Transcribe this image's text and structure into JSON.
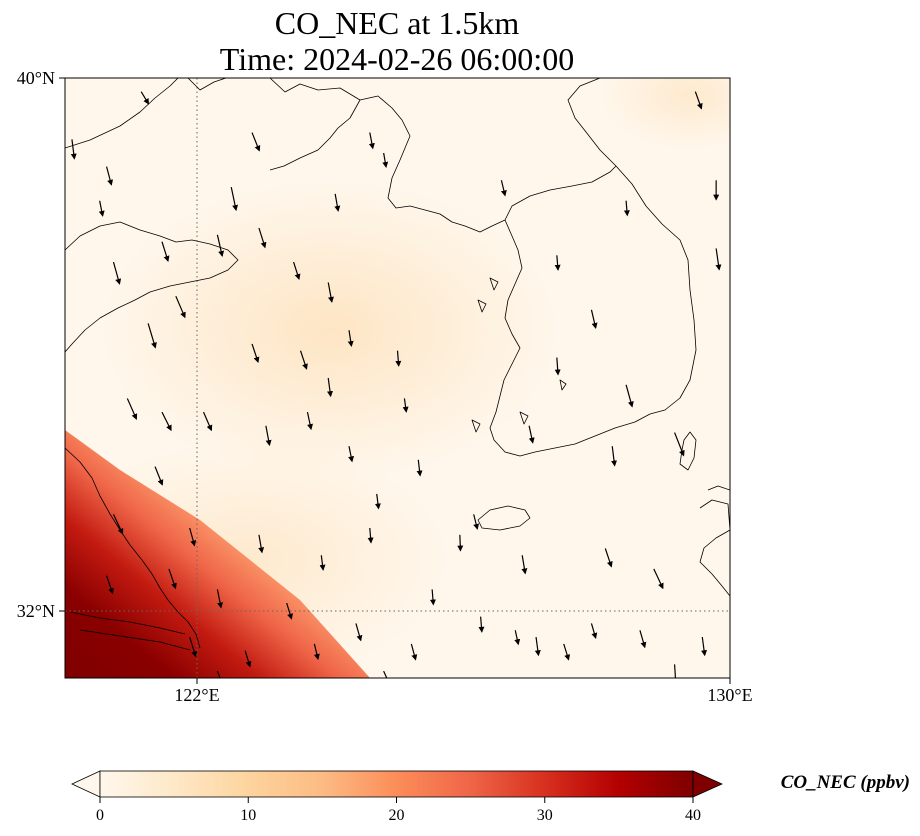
{
  "title": {
    "line1": "CO_NEC at 1.5km",
    "line2": "Time: 2024-02-26 06:00:00"
  },
  "map": {
    "extent": {
      "lon_min": 120.4,
      "lon_max": 130,
      "lat_min": 31.2,
      "lat_max": 40
    },
    "lat_ticks": [
      {
        "value": 40,
        "label": "40°N"
      },
      {
        "value": 32,
        "label": "32°N"
      }
    ],
    "lon_ticks": [
      {
        "value": 122,
        "label": "122°E"
      },
      {
        "value": 130,
        "label": "130°E"
      }
    ],
    "gridlines": "dotted at 122°E and 32°N",
    "land_outline": "coastlines of eastern China, Shandong and Liaodong peninsulas, North Korea, South Korea, Jeju Island, Tsushima and western Japan",
    "field_description": "CO_NEC concentration mostly 0–10 ppbv over the Yellow Sea and Korea, rising to over 40 ppbv near the Yangtze River Delta in the south-west corner",
    "wind": "south-to-south-south-west-pointing wind arrows over the whole domain"
  },
  "colorbar": {
    "label": "CO_NEC (ppbv)",
    "min": 0,
    "max": 40,
    "ticks": [
      "0",
      "10",
      "20",
      "30",
      "40"
    ],
    "colormap": "OrRd",
    "extend": "both",
    "colors": [
      "#fff7ec",
      "#fee8c8",
      "#fdd49e",
      "#fdbb84",
      "#fc8d59",
      "#ef6548",
      "#d7301f",
      "#b30000",
      "#7f0000"
    ]
  },
  "wind_vectors": [
    [
      120.5,
      39.1,
      0.4,
      -3.2
    ],
    [
      121.0,
      38.7,
      0.8,
      -3.0
    ],
    [
      121.5,
      39.8,
      1.2,
      -2.0
    ],
    [
      120.9,
      38.2,
      0.5,
      -2.5
    ],
    [
      121.8,
      37.6,
      1.0,
      -3.2
    ],
    [
      121.1,
      37.3,
      1.0,
      -3.6
    ],
    [
      122.0,
      36.8,
      1.5,
      -3.5
    ],
    [
      121.6,
      36.4,
      1.2,
      -4.0
    ],
    [
      122.8,
      38.4,
      0.8,
      -3.8
    ],
    [
      123.1,
      39.2,
      1.2,
      -3.0
    ],
    [
      122.6,
      37.7,
      0.8,
      -3.5
    ],
    [
      123.2,
      37.8,
      1.0,
      -3.2
    ],
    [
      124.2,
      37.0,
      0.6,
      -3.2
    ],
    [
      123.7,
      37.3,
      0.9,
      -2.8
    ],
    [
      124.5,
      36.3,
      0.4,
      -2.6
    ],
    [
      123.1,
      36.1,
      1.0,
      -3.0
    ],
    [
      123.8,
      36.0,
      1.0,
      -3.0
    ],
    [
      125.2,
      36.0,
      0.2,
      -2.5
    ],
    [
      125.3,
      35.3,
      0.3,
      -2.2
    ],
    [
      124.2,
      35.6,
      0.4,
      -3.0
    ],
    [
      121.3,
      35.3,
      1.5,
      -3.4
    ],
    [
      121.8,
      35.1,
      1.5,
      -3.0
    ],
    [
      122.4,
      35.1,
      1.3,
      -3.0
    ],
    [
      123.3,
      34.9,
      0.6,
      -3.2
    ],
    [
      123.9,
      35.1,
      0.6,
      -2.8
    ],
    [
      124.5,
      34.6,
      0.5,
      -2.5
    ],
    [
      125.5,
      34.4,
      0.3,
      -2.6
    ],
    [
      124.9,
      33.9,
      0.3,
      -2.4
    ],
    [
      121.7,
      34.3,
      1.2,
      -3.0
    ],
    [
      121.1,
      33.6,
      1.5,
      -3.2
    ],
    [
      122.2,
      33.4,
      0.8,
      -2.9
    ],
    [
      123.2,
      33.3,
      0.5,
      -2.9
    ],
    [
      124.1,
      33.0,
      0.3,
      -2.4
    ],
    [
      124.8,
      33.4,
      0.2,
      -2.4
    ],
    [
      126.1,
      33.3,
      0.1,
      -2.6
    ],
    [
      125.7,
      32.5,
      0.2,
      -2.5
    ],
    [
      121.0,
      32.7,
      1.0,
      -2.9
    ],
    [
      121.9,
      32.8,
      1.1,
      -3.2
    ],
    [
      122.6,
      32.5,
      0.6,
      -3.0
    ],
    [
      123.6,
      32.3,
      0.8,
      -2.6
    ],
    [
      124.6,
      32.0,
      0.8,
      -2.8
    ],
    [
      125.4,
      31.7,
      0.7,
      -2.6
    ],
    [
      126.4,
      32.1,
      0.2,
      -2.5
    ],
    [
      126.9,
      31.9,
      0.5,
      -2.3
    ],
    [
      122.2,
      31.8,
      1.0,
      -3.2
    ],
    [
      123.0,
      31.6,
      0.8,
      -2.6
    ],
    [
      124.0,
      31.7,
      0.6,
      -2.5
    ],
    [
      125.0,
      31.3,
      1.0,
      -2.2
    ],
    [
      127.2,
      31.8,
      0.4,
      -3.0
    ],
    [
      127.6,
      31.7,
      0.8,
      -2.6
    ],
    [
      128.0,
      32.0,
      0.7,
      -2.4
    ],
    [
      129.2,
      31.4,
      0.2,
      -3.2
    ],
    [
      122.6,
      31.3,
      1.0,
      -2.6
    ],
    [
      123.6,
      31.2,
      0.8,
      -2.3
    ],
    [
      127.5,
      35.9,
      0.2,
      -2.8
    ],
    [
      127.5,
      37.4,
      0.2,
      -2.4
    ],
    [
      127.1,
      34.9,
      0.6,
      -2.8
    ],
    [
      128.0,
      36.6,
      0.7,
      -3.0
    ],
    [
      128.5,
      35.5,
      1.0,
      -3.6
    ],
    [
      129.2,
      34.8,
      1.5,
      -3.8
    ],
    [
      129.8,
      37.5,
      0.5,
      -3.5
    ],
    [
      129.8,
      38.5,
      0.0,
      -3.2
    ],
    [
      129.5,
      39.8,
      1.0,
      -2.8
    ],
    [
      128.5,
      38.2,
      0.2,
      -2.4
    ],
    [
      128.2,
      33.1,
      1.0,
      -3.0
    ],
    [
      128.9,
      32.8,
      1.5,
      -3.2
    ],
    [
      128.3,
      34.6,
      0.4,
      -3.2
    ],
    [
      126.3,
      33.6,
      0.6,
      -2.4
    ],
    [
      126.7,
      38.5,
      0.6,
      -2.5
    ],
    [
      124.8,
      39.2,
      0.5,
      -2.6
    ],
    [
      125.0,
      38.9,
      0.4,
      -2.3
    ],
    [
      124.3,
      38.3,
      0.5,
      -2.8
    ],
    [
      129.6,
      31.8,
      0.4,
      -3.0
    ],
    [
      127.0,
      33.0,
      0.5,
      -3.0
    ],
    [
      128.7,
      31.9,
      0.8,
      -2.8
    ]
  ]
}
